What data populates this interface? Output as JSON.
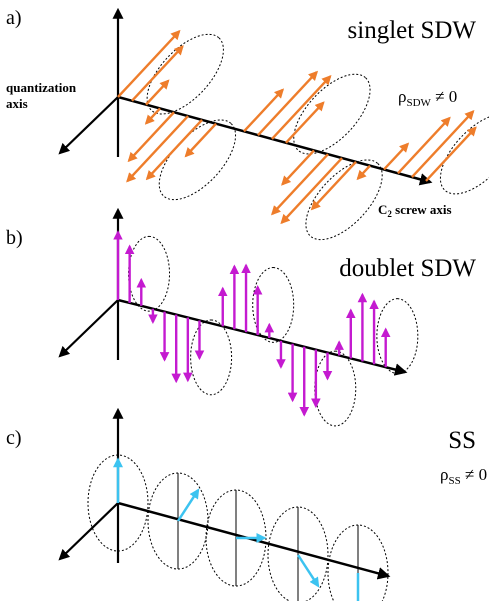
{
  "panels": [
    {
      "label": "a)",
      "title": "singlet SDW",
      "order": {
        "symbol": "ρ",
        "sub": "SDW",
        "rest": " ≠ 0"
      },
      "axis_label": [
        "quantization",
        "axis"
      ],
      "screw": {
        "symbol": "C",
        "sub": "2",
        "rest": " screw axis"
      }
    },
    {
      "label": "b)",
      "title": "doublet SDW"
    },
    {
      "label": "c)",
      "title": "SS",
      "order": {
        "symbol": "ρ",
        "sub": "SS",
        "rest": " ≠ 0"
      }
    }
  ]
}
